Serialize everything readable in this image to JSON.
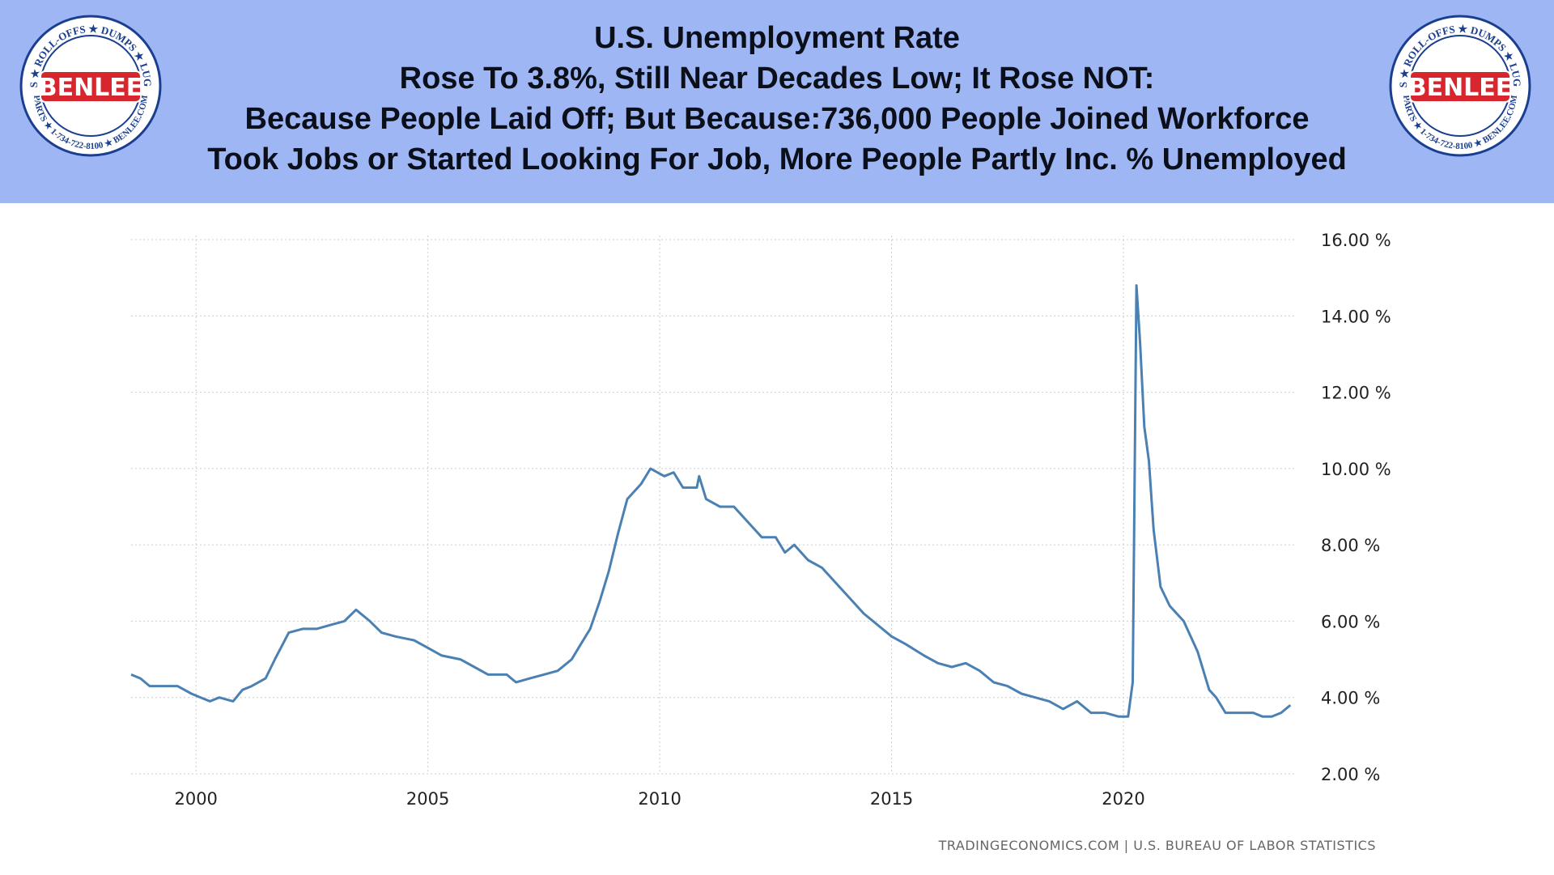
{
  "title": {
    "line1": "U.S. Unemployment Rate",
    "line2": "Rose To 3.8%, Still Near Decades Low; It Rose NOT:",
    "line3": "Because People Laid Off; But Because:736,000 People Joined Workforce",
    "line4": "Took Jobs or Started Looking For Job, More People Partly Inc. % Unemployed"
  },
  "logo": {
    "name": "BENLEE",
    "ring_top": "TARPS ★ ROLL-OFFS ★ DUMPS ★ LUGGERS",
    "ring_bottom": "PARTS ★ 1-734-722-8100 ★ BENLEE.COM",
    "colors": {
      "ring": "#1b3f8f",
      "red": "#d8262e",
      "white": "#ffffff"
    }
  },
  "source": "TRADINGECONOMICS.COM  |  U.S. BUREAU OF LABOR STATISTICS",
  "colors": {
    "line": "#4a80b2",
    "grid": "#cccccc",
    "banner": "#9fb6f5"
  },
  "chart_data": {
    "type": "line",
    "x_axis": "year",
    "ylim": [
      2,
      16
    ],
    "xlim": [
      1998.6,
      2023.7
    ],
    "y_ticks": [
      2,
      4,
      6,
      8,
      10,
      12,
      14,
      16
    ],
    "y_tick_labels": [
      "2.00 %",
      "4.00 %",
      "6.00 %",
      "8.00 %",
      "10.00 %",
      "12.00 %",
      "14.00 %",
      "16.00 %"
    ],
    "x_ticks": [
      2000,
      2005,
      2010,
      2015,
      2020
    ],
    "x_tick_labels": [
      "2000",
      "2005",
      "2010",
      "2015",
      "2020"
    ],
    "grid": "dotted",
    "series": [
      {
        "values": [
          [
            1998.6,
            4.6
          ],
          [
            1998.8,
            4.5
          ],
          [
            1999.0,
            4.3
          ],
          [
            1999.3,
            4.3
          ],
          [
            1999.6,
            4.3
          ],
          [
            1999.9,
            4.1
          ],
          [
            2000.1,
            4.0
          ],
          [
            2000.3,
            3.9
          ],
          [
            2000.5,
            4.0
          ],
          [
            2000.8,
            3.9
          ],
          [
            2001.0,
            4.2
          ],
          [
            2001.2,
            4.3
          ],
          [
            2001.5,
            4.5
          ],
          [
            2001.7,
            5.0
          ],
          [
            2002.0,
            5.7
          ],
          [
            2002.3,
            5.8
          ],
          [
            2002.6,
            5.8
          ],
          [
            2002.9,
            5.9
          ],
          [
            2003.2,
            6.0
          ],
          [
            2003.45,
            6.3
          ],
          [
            2003.75,
            6.0
          ],
          [
            2004.0,
            5.7
          ],
          [
            2004.3,
            5.6
          ],
          [
            2004.7,
            5.5
          ],
          [
            2005.0,
            5.3
          ],
          [
            2005.3,
            5.1
          ],
          [
            2005.7,
            5.0
          ],
          [
            2006.0,
            4.8
          ],
          [
            2006.3,
            4.6
          ],
          [
            2006.7,
            4.6
          ],
          [
            2006.9,
            4.4
          ],
          [
            2007.2,
            4.5
          ],
          [
            2007.5,
            4.6
          ],
          [
            2007.8,
            4.7
          ],
          [
            2008.1,
            5.0
          ],
          [
            2008.3,
            5.4
          ],
          [
            2008.5,
            5.8
          ],
          [
            2008.7,
            6.5
          ],
          [
            2008.9,
            7.3
          ],
          [
            2009.1,
            8.3
          ],
          [
            2009.3,
            9.2
          ],
          [
            2009.6,
            9.6
          ],
          [
            2009.8,
            10.0
          ],
          [
            2010.1,
            9.8
          ],
          [
            2010.3,
            9.9
          ],
          [
            2010.5,
            9.5
          ],
          [
            2010.8,
            9.5
          ],
          [
            2010.85,
            9.8
          ],
          [
            2011.0,
            9.2
          ],
          [
            2011.3,
            9.0
          ],
          [
            2011.6,
            9.0
          ],
          [
            2011.9,
            8.6
          ],
          [
            2012.2,
            8.2
          ],
          [
            2012.5,
            8.2
          ],
          [
            2012.7,
            7.8
          ],
          [
            2012.9,
            8.0
          ],
          [
            2013.2,
            7.6
          ],
          [
            2013.5,
            7.4
          ],
          [
            2013.8,
            7.0
          ],
          [
            2014.1,
            6.6
          ],
          [
            2014.4,
            6.2
          ],
          [
            2014.7,
            5.9
          ],
          [
            2015.0,
            5.6
          ],
          [
            2015.3,
            5.4
          ],
          [
            2015.7,
            5.1
          ],
          [
            2016.0,
            4.9
          ],
          [
            2016.3,
            4.8
          ],
          [
            2016.6,
            4.9
          ],
          [
            2016.9,
            4.7
          ],
          [
            2017.2,
            4.4
          ],
          [
            2017.5,
            4.3
          ],
          [
            2017.8,
            4.1
          ],
          [
            2018.1,
            4.0
          ],
          [
            2018.4,
            3.9
          ],
          [
            2018.7,
            3.7
          ],
          [
            2019.0,
            3.9
          ],
          [
            2019.3,
            3.6
          ],
          [
            2019.6,
            3.6
          ],
          [
            2019.9,
            3.5
          ],
          [
            2020.1,
            3.5
          ],
          [
            2020.2,
            4.4
          ],
          [
            2020.28,
            14.8
          ],
          [
            2020.36,
            13.3
          ],
          [
            2020.45,
            11.1
          ],
          [
            2020.55,
            10.2
          ],
          [
            2020.65,
            8.4
          ],
          [
            2020.8,
            6.9
          ],
          [
            2021.0,
            6.4
          ],
          [
            2021.3,
            6.0
          ],
          [
            2021.6,
            5.2
          ],
          [
            2021.85,
            4.2
          ],
          [
            2022.0,
            4.0
          ],
          [
            2022.2,
            3.6
          ],
          [
            2022.5,
            3.6
          ],
          [
            2022.8,
            3.6
          ],
          [
            2023.0,
            3.5
          ],
          [
            2023.2,
            3.5
          ],
          [
            2023.4,
            3.6
          ],
          [
            2023.6,
            3.8
          ]
        ]
      }
    ]
  }
}
